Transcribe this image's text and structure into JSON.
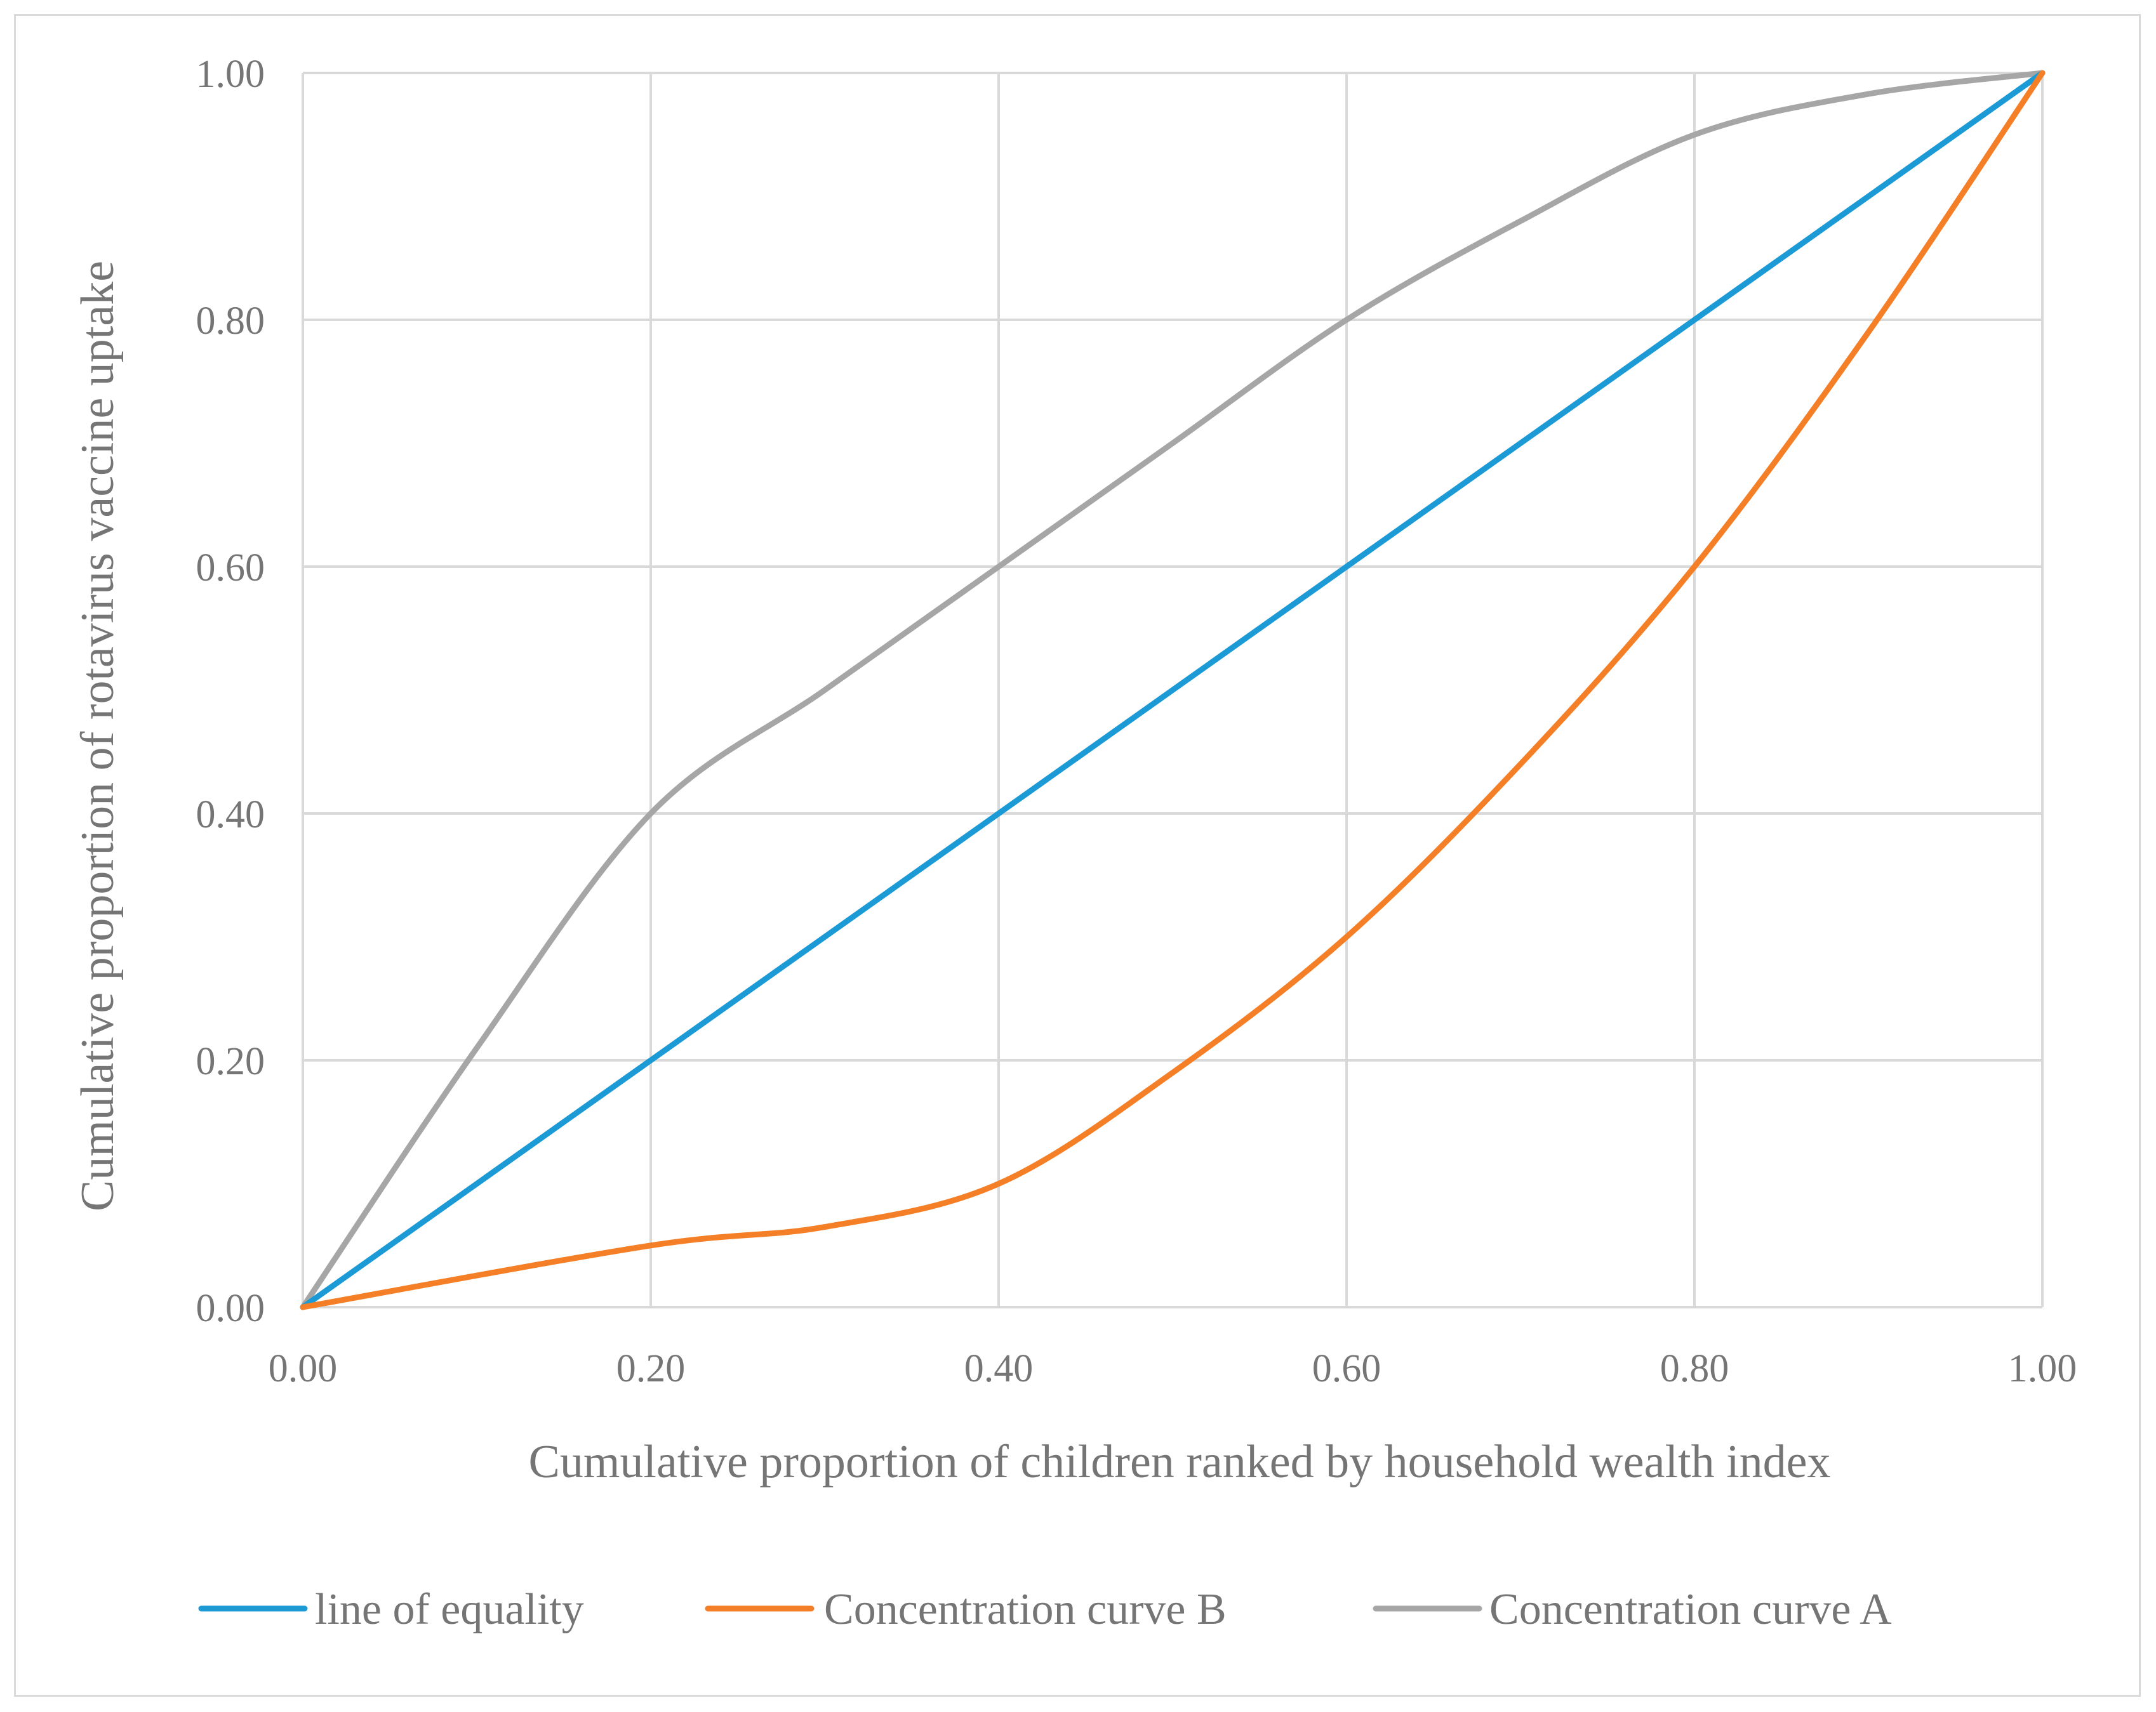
{
  "chart_data": {
    "type": "line",
    "title": "",
    "xlabel": "Cumulative proportion of children ranked by household wealth index",
    "ylabel": "Cumulative proportion of rotavirus vaccine uptake",
    "xlim": [
      0,
      1
    ],
    "ylim": [
      0,
      1
    ],
    "grid": true,
    "legend_position": "bottom",
    "x_ticks": [
      "0.00",
      "0.20",
      "0.40",
      "0.60",
      "0.80",
      "1.00"
    ],
    "y_ticks": [
      "0.00",
      "0.20",
      "0.40",
      "0.60",
      "0.80",
      "1.00"
    ],
    "series": [
      {
        "name": "line of equality",
        "color": "#1b9ad6",
        "x": [
          0,
          1
        ],
        "y": [
          0,
          1
        ]
      },
      {
        "name": "Concentration curve B",
        "color": "#f47f26",
        "x": [
          0,
          0.2,
          0.3,
          0.4,
          0.5,
          0.6,
          0.7,
          0.8,
          0.9,
          1.0
        ],
        "y": [
          0,
          0.05,
          0.065,
          0.1,
          0.19,
          0.3,
          0.44,
          0.6,
          0.79,
          1.0
        ]
      },
      {
        "name": "Concentration curve A",
        "color": "#a6a6a6",
        "x": [
          0,
          0.1,
          0.2,
          0.3,
          0.4,
          0.5,
          0.6,
          0.7,
          0.8,
          0.9,
          1.0
        ],
        "y": [
          0,
          0.21,
          0.4,
          0.5,
          0.6,
          0.7,
          0.8,
          0.88,
          0.95,
          0.983,
          1.0
        ]
      }
    ]
  }
}
